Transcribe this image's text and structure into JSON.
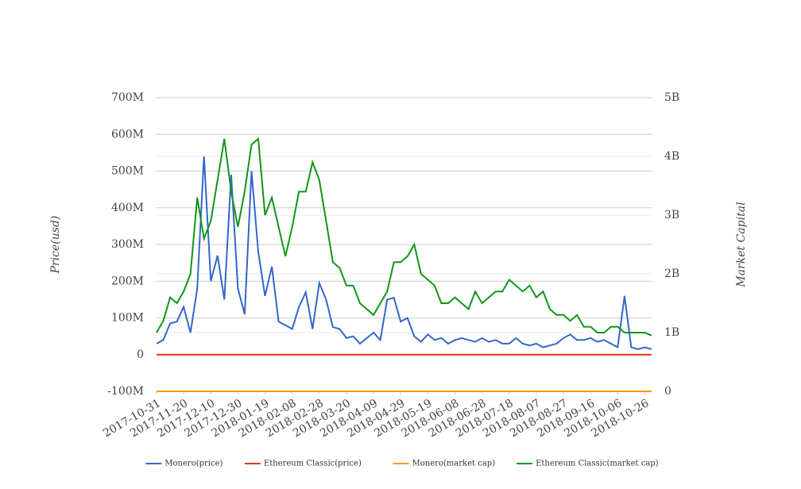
{
  "chart_data": {
    "type": "line",
    "y_label": "Price(usd)",
    "y2_label": "Market Capital",
    "x": [
      "2017-10-31",
      "2017-11-05",
      "2017-11-10",
      "2017-11-15",
      "2017-11-20",
      "2017-11-25",
      "2017-11-30",
      "2017-12-05",
      "2017-12-10",
      "2017-12-15",
      "2017-12-20",
      "2017-12-25",
      "2017-12-30",
      "2018-01-04",
      "2018-01-09",
      "2018-01-14",
      "2018-01-19",
      "2018-01-24",
      "2018-01-29",
      "2018-02-03",
      "2018-02-08",
      "2018-02-13",
      "2018-02-18",
      "2018-02-23",
      "2018-02-28",
      "2018-03-05",
      "2018-03-10",
      "2018-03-15",
      "2018-03-20",
      "2018-03-25",
      "2018-03-30",
      "2018-04-04",
      "2018-04-09",
      "2018-04-14",
      "2018-04-19",
      "2018-04-24",
      "2018-04-29",
      "2018-05-04",
      "2018-05-09",
      "2018-05-14",
      "2018-05-19",
      "2018-05-24",
      "2018-05-29",
      "2018-06-03",
      "2018-06-08",
      "2018-06-13",
      "2018-06-18",
      "2018-06-23",
      "2018-06-28",
      "2018-07-03",
      "2018-07-08",
      "2018-07-13",
      "2018-07-18",
      "2018-07-23",
      "2018-07-28",
      "2018-08-02",
      "2018-08-07",
      "2018-08-12",
      "2018-08-17",
      "2018-08-22",
      "2018-08-27",
      "2018-09-01",
      "2018-09-06",
      "2018-09-11",
      "2018-09-16",
      "2018-09-21",
      "2018-09-26",
      "2018-10-01",
      "2018-10-06",
      "2018-10-11",
      "2018-10-16",
      "2018-10-21",
      "2018-10-26",
      "2018-10-31"
    ],
    "series": [
      {
        "name": "Monero(price)",
        "color": "#3366cc",
        "axis": "y",
        "values": [
          30000000,
          40000000,
          85000000,
          90000000,
          130000000,
          60000000,
          180000000,
          540000000,
          200000000,
          270000000,
          150000000,
          490000000,
          180000000,
          110000000,
          500000000,
          280000000,
          160000000,
          240000000,
          90000000,
          80000000,
          70000000,
          130000000,
          170000000,
          70000000,
          195000000,
          150000000,
          75000000,
          70000000,
          45000000,
          50000000,
          30000000,
          45000000,
          60000000,
          40000000,
          150000000,
          155000000,
          90000000,
          100000000,
          50000000,
          35000000,
          55000000,
          40000000,
          45000000,
          30000000,
          40000000,
          45000000,
          40000000,
          35000000,
          45000000,
          35000000,
          40000000,
          30000000,
          30000000,
          45000000,
          30000000,
          25000000,
          30000000,
          20000000,
          25000000,
          30000000,
          45000000,
          55000000,
          40000000,
          40000000,
          45000000,
          35000000,
          40000000,
          30000000,
          20000000,
          160000000,
          20000000,
          15000000,
          20000000,
          15000000
        ]
      },
      {
        "name": "Ethereum Classic(price)",
        "color": "#dc3912",
        "axis": "y",
        "values": [
          0,
          0,
          0,
          0,
          0,
          0,
          0,
          0,
          0,
          0,
          0,
          0,
          0,
          0,
          0,
          0,
          0,
          0,
          0,
          0,
          0,
          0,
          0,
          0,
          0,
          0,
          0,
          0,
          0,
          0,
          0,
          0,
          0,
          0,
          0,
          0,
          0,
          0,
          0,
          0,
          0,
          0,
          0,
          0,
          0,
          0,
          0,
          0,
          0,
          0,
          0,
          0,
          0,
          0,
          0,
          0,
          0,
          0,
          0,
          0,
          0,
          0,
          0,
          0,
          0,
          0,
          0,
          0,
          0,
          0,
          0,
          0,
          0,
          0
        ]
      },
      {
        "name": "Monero(market cap)",
        "color": "#ff9900",
        "axis": "y2",
        "values": [
          0,
          0,
          0,
          0,
          0,
          0,
          0,
          0,
          0,
          0,
          0,
          0,
          0,
          0,
          0,
          0,
          0,
          0,
          0,
          0,
          0,
          0,
          0,
          0,
          0,
          0,
          0,
          0,
          0,
          0,
          0,
          0,
          0,
          0,
          0,
          0,
          0,
          0,
          0,
          0,
          0,
          0,
          0,
          0,
          0,
          0,
          0,
          0,
          0,
          0,
          0,
          0,
          0,
          0,
          0,
          0,
          0,
          0,
          0,
          0,
          0,
          0,
          0,
          0,
          0,
          0,
          0,
          0,
          0,
          0,
          0,
          0,
          0,
          0
        ]
      },
      {
        "name": "Ethereum Classic(market cap)",
        "color": "#109618",
        "axis": "y2",
        "values": [
          1000000000,
          1200000000,
          1600000000,
          1500000000,
          1700000000,
          2000000000,
          3300000000,
          2600000000,
          2900000000,
          3600000000,
          4300000000,
          3400000000,
          2800000000,
          3400000000,
          4200000000,
          4300000000,
          3000000000,
          3300000000,
          2800000000,
          2300000000,
          2800000000,
          3400000000,
          3400000000,
          3900000000,
          3600000000,
          2900000000,
          2200000000,
          2100000000,
          1800000000,
          1800000000,
          1500000000,
          1400000000,
          1300000000,
          1500000000,
          1700000000,
          2200000000,
          2200000000,
          2300000000,
          2500000000,
          2000000000,
          1900000000,
          1800000000,
          1500000000,
          1500000000,
          1600000000,
          1500000000,
          1400000000,
          1700000000,
          1500000000,
          1600000000,
          1700000000,
          1700000000,
          1900000000,
          1800000000,
          1700000000,
          1800000000,
          1600000000,
          1700000000,
          1400000000,
          1300000000,
          1300000000,
          1200000000,
          1300000000,
          1100000000,
          1100000000,
          1000000000,
          1000000000,
          1100000000,
          1100000000,
          1000000000,
          1000000000,
          1000000000,
          1000000000,
          950000000
        ]
      }
    ],
    "xlim": [
      "2017-10-31",
      "2018-10-31"
    ],
    "xticks": [
      "2017-10-31",
      "2017-11-20",
      "2017-12-10",
      "2017-12-30",
      "2018-01-19",
      "2018-02-08",
      "2018-02-28",
      "2018-03-20",
      "2018-04-09",
      "2018-04-29",
      "2018-05-19",
      "2018-06-08",
      "2018-06-28",
      "2018-07-18",
      "2018-08-07",
      "2018-08-27",
      "2018-09-16",
      "2018-10-06",
      "2018-10-26"
    ],
    "ylim": [
      -100000000,
      700000000
    ],
    "yticks": [
      {
        "value": -100000000,
        "label": "-100M"
      },
      0,
      {
        "value": 100000000,
        "label": "100M"
      },
      {
        "value": 200000000,
        "label": "200M"
      },
      {
        "value": 300000000,
        "label": "300M"
      },
      {
        "value": 400000000,
        "label": "400M"
      },
      {
        "value": 500000000,
        "label": "500M"
      },
      {
        "value": 600000000,
        "label": "600M"
      },
      {
        "value": 700000000,
        "label": "700M"
      }
    ],
    "y2lim": [
      0,
      5000000000
    ],
    "y2ticks": [
      0,
      {
        "value": 1000000000,
        "label": "1B"
      },
      {
        "value": 2000000000,
        "label": "2B"
      },
      {
        "value": 3000000000,
        "label": "3B"
      },
      {
        "value": 4000000000,
        "label": "4B"
      },
      {
        "value": 5000000000,
        "label": "5B"
      }
    ],
    "grid": true,
    "legend": "bottom"
  }
}
